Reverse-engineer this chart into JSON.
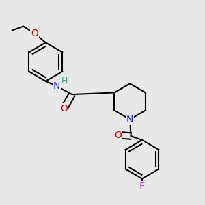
{
  "background_color": "#e8e8e8",
  "bond_color": "#000000",
  "bond_width": 1.5,
  "figsize": [
    3.0,
    3.0
  ],
  "dpi": 100,
  "colors": {
    "O": "#cc0000",
    "N": "#1a1aff",
    "H": "#4a9a9a",
    "F": "#cc44cc",
    "C": "#000000"
  }
}
